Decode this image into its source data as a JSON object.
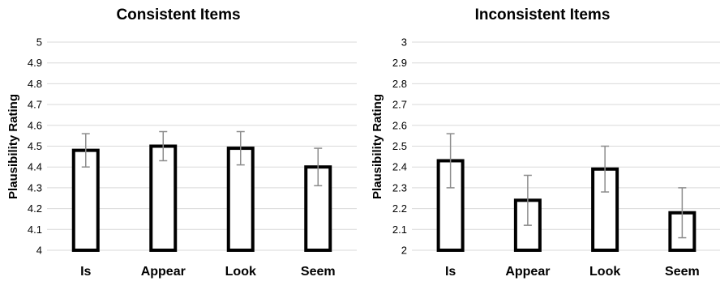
{
  "chart_data": [
    {
      "type": "bar",
      "title": "Consistent Items",
      "xlabel": "",
      "ylabel": "Plausibility Rating",
      "categories": [
        "Is",
        "Appear",
        "Look",
        "Seem"
      ],
      "values": [
        4.48,
        4.5,
        4.49,
        4.4
      ],
      "error_bars": {
        "lower": [
          4.4,
          4.43,
          4.41,
          4.31
        ],
        "upper": [
          4.56,
          4.57,
          4.57,
          4.49
        ]
      },
      "ylim": [
        4,
        5
      ],
      "yticks": [
        "4",
        "4.1",
        "4.2",
        "4.3",
        "4.4",
        "4.5",
        "4.6",
        "4.7",
        "4.8",
        "4.9",
        "5"
      ],
      "grid": true
    },
    {
      "type": "bar",
      "title": "Inconsistent Items",
      "xlabel": "",
      "ylabel": "Plausibility Rating",
      "categories": [
        "Is",
        "Appear",
        "Look",
        "Seem"
      ],
      "values": [
        2.43,
        2.24,
        2.39,
        2.18
      ],
      "error_bars": {
        "lower": [
          2.3,
          2.12,
          2.28,
          2.06
        ],
        "upper": [
          2.56,
          2.36,
          2.5,
          2.3
        ]
      },
      "ylim": [
        2,
        3
      ],
      "yticks": [
        "2",
        "2.1",
        "2.2",
        "2.3",
        "2.4",
        "2.5",
        "2.6",
        "2.7",
        "2.8",
        "2.9",
        "3"
      ],
      "grid": true
    }
  ]
}
